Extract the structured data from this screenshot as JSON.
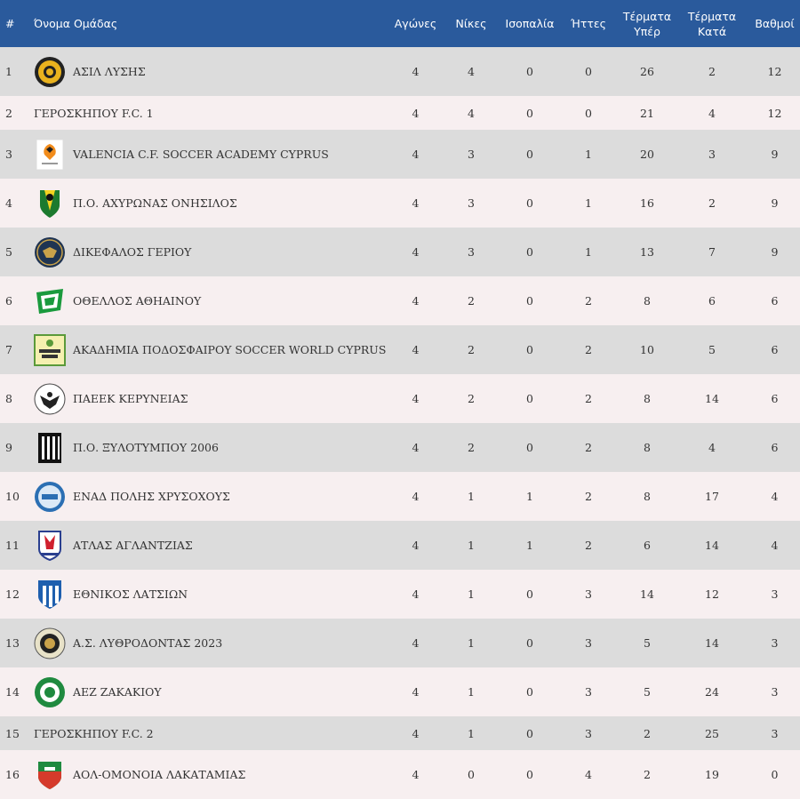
{
  "table": {
    "headers": {
      "rank": "#",
      "team": "Όνομα Ομάδας",
      "played": "Αγώνες",
      "wins": "Νίκες",
      "draws": "Ισοπαλία",
      "losses": "Ήττες",
      "goals_for": "Τέρματα Υπέρ",
      "goals_against": "Τέρματα Κατά",
      "points": "Βαθμοί"
    },
    "rows": [
      {
        "rank": "1",
        "team": "ΑΣΙΛ ΛΥΣΗΣ",
        "logo": "shield-gold-black-icon",
        "played": "4",
        "wins": "4",
        "draws": "0",
        "losses": "0",
        "goals_for": "26",
        "goals_against": "2",
        "points": "12"
      },
      {
        "rank": "2",
        "team": "ΓΕΡΟΣΚΗΠΟΥ F.C. 1",
        "logo": "",
        "played": "4",
        "wins": "4",
        "draws": "0",
        "losses": "0",
        "goals_for": "21",
        "goals_against": "4",
        "points": "12"
      },
      {
        "rank": "3",
        "team": "VALENCIA C.F. SOCCER ACADEMY CYPRUS",
        "logo": "bat-crest-icon",
        "played": "4",
        "wins": "3",
        "draws": "0",
        "losses": "1",
        "goals_for": "20",
        "goals_against": "3",
        "points": "9"
      },
      {
        "rank": "4",
        "team": "Π.Ο. ΑΧΥΡΩΝΑΣ ΟΝΗΣΙΛΟΣ",
        "logo": "green-yellow-shield-icon",
        "played": "4",
        "wins": "3",
        "draws": "0",
        "losses": "1",
        "goals_for": "16",
        "goals_against": "2",
        "points": "9"
      },
      {
        "rank": "5",
        "team": "ΔΙΚΕΦΑΛΟΣ ΓΕΡΙΟΥ",
        "logo": "double-eagle-icon",
        "played": "4",
        "wins": "3",
        "draws": "0",
        "losses": "1",
        "goals_for": "13",
        "goals_against": "7",
        "points": "9"
      },
      {
        "rank": "6",
        "team": "ΟΘΕΛΛΟΣ ΑΘΗΑΙΝΟΥ",
        "logo": "green-pennant-icon",
        "played": "4",
        "wins": "2",
        "draws": "0",
        "losses": "2",
        "goals_for": "8",
        "goals_against": "6",
        "points": "6"
      },
      {
        "rank": "7",
        "team": "ΑΚΑΔΗΜΙΑ ΠΟΔΟΣΦΑΙΡΟΥ SOCCER WORLD CYPRUS",
        "logo": "soccer-world-badge-icon",
        "played": "4",
        "wins": "2",
        "draws": "0",
        "losses": "2",
        "goals_for": "10",
        "goals_against": "5",
        "points": "6"
      },
      {
        "rank": "8",
        "team": "ΠΑΕΕΚ ΚΕΡΥΝΕΙΑΣ",
        "logo": "black-eagle-icon",
        "played": "4",
        "wins": "2",
        "draws": "0",
        "losses": "2",
        "goals_for": "8",
        "goals_against": "14",
        "points": "6"
      },
      {
        "rank": "9",
        "team": "Π.Ο. ΞΥΛΟΤΥΜΠΟΥ 2006",
        "logo": "striped-shield-icon",
        "played": "4",
        "wins": "2",
        "draws": "0",
        "losses": "2",
        "goals_for": "8",
        "goals_against": "4",
        "points": "6"
      },
      {
        "rank": "10",
        "team": "ΕΝΑΔ ΠΟΛΗΣ ΧΡΥΣΟΧΟΥΣ",
        "logo": "blue-circle-badge-icon",
        "played": "4",
        "wins": "1",
        "draws": "1",
        "losses": "2",
        "goals_for": "8",
        "goals_against": "17",
        "points": "4"
      },
      {
        "rank": "11",
        "team": "ΑΤΛΑΣ ΑΓΛΑΝΤΖΙΑΣ",
        "logo": "atlas-crest-icon",
        "played": "4",
        "wins": "1",
        "draws": "1",
        "losses": "2",
        "goals_for": "6",
        "goals_against": "14",
        "points": "4"
      },
      {
        "rank": "12",
        "team": "ΕΘΝΙΚΟΣ ΛΑΤΣΙΩΝ",
        "logo": "blue-striped-shield-icon",
        "played": "4",
        "wins": "1",
        "draws": "0",
        "losses": "3",
        "goals_for": "14",
        "goals_against": "12",
        "points": "3"
      },
      {
        "rank": "13",
        "team": "Α.Σ. ΛΥΘΡΟΔΟΝΤΑΣ 2023",
        "logo": "gold-ring-badge-icon",
        "played": "4",
        "wins": "1",
        "draws": "0",
        "losses": "3",
        "goals_for": "5",
        "goals_against": "14",
        "points": "3"
      },
      {
        "rank": "14",
        "team": "ΑΕΖ ΖΑΚΑΚΙΟΥ",
        "logo": "green-circle-badge-icon",
        "played": "4",
        "wins": "1",
        "draws": "0",
        "losses": "3",
        "goals_for": "5",
        "goals_against": "24",
        "points": "3"
      },
      {
        "rank": "15",
        "team": "ΓΕΡΟΣΚΗΠΟΥ F.C. 2",
        "logo": "",
        "played": "4",
        "wins": "1",
        "draws": "0",
        "losses": "3",
        "goals_for": "2",
        "goals_against": "25",
        "points": "3"
      },
      {
        "rank": "16",
        "team": "ΑΟΛ-ΟΜΟΝΟΙΑ ΛΑΚΑΤΑΜΙΑΣ",
        "logo": "green-red-shield-icon",
        "played": "4",
        "wins": "0",
        "draws": "0",
        "losses": "4",
        "goals_for": "2",
        "goals_against": "19",
        "points": "0"
      }
    ]
  }
}
